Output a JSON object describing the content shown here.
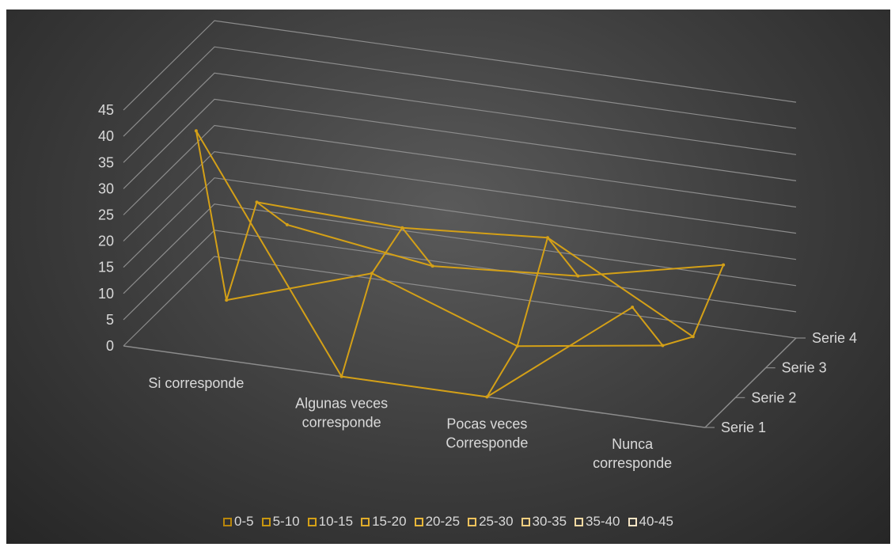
{
  "chart_data": {
    "type": "surface-3d-wireframe",
    "title": "",
    "categories": [
      "Si corresponde",
      "Algunas veces corresponde",
      "Pocas veces Corresponde",
      "Nunca corresponde"
    ],
    "category_lines": [
      [
        "Si corresponde"
      ],
      [
        "Algunas veces",
        "corresponde"
      ],
      [
        "Pocas veces",
        "Corresponde"
      ],
      [
        "Nunca",
        "corresponde"
      ]
    ],
    "series_axis": [
      "Serie 1",
      "Serie 2",
      "Serie 3",
      "Serie 4"
    ],
    "series": [
      {
        "name": "Serie 1",
        "values": [
          43,
          0,
          0,
          21
        ]
      },
      {
        "name": "Serie 2",
        "values": [
          5,
          14,
          4,
          8
        ]
      },
      {
        "name": "Serie 3",
        "values": [
          18,
          17,
          19,
          4
        ]
      },
      {
        "name": "Serie 4",
        "values": [
          8,
          4,
          6,
          12
        ]
      }
    ],
    "z_ticks": [
      "0",
      "5",
      "10",
      "15",
      "20",
      "25",
      "30",
      "35",
      "40",
      "45"
    ],
    "zlim": [
      0,
      45
    ],
    "legend": {
      "position": "bottom",
      "entries": [
        "0-5",
        "5-10",
        "10-15",
        "15-20",
        "20-25",
        "25-30",
        "30-35",
        "35-40",
        "40-45"
      ],
      "colors": [
        "#b8860b",
        "#c8960f",
        "#d4a017",
        "#e0ac2a",
        "#e8b73a",
        "#edc25c",
        "#f0ce80",
        "#f2d9a2",
        "#f5e4c4"
      ]
    },
    "colors": {
      "wire": "#d4a017",
      "grid": "#8c8c8c",
      "text": "#d9d9d9",
      "background": "#3c3c3c"
    }
  }
}
